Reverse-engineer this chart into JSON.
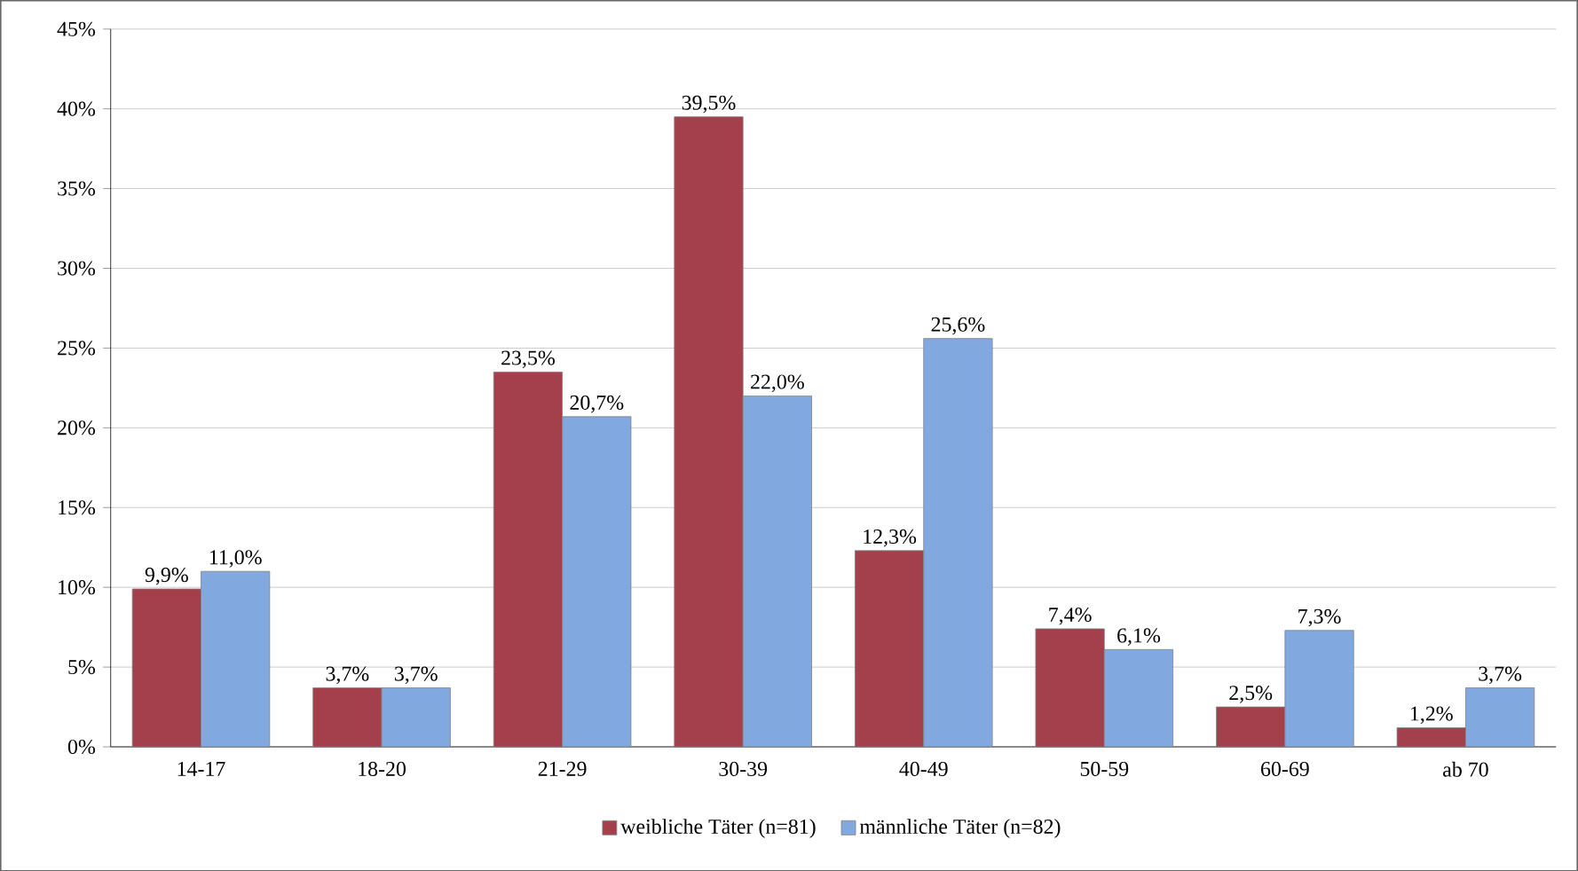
{
  "chart_data": {
    "type": "bar",
    "categories": [
      "14-17",
      "18-20",
      "21-29",
      "30-39",
      "40-49",
      "50-59",
      "60-69",
      "ab 70"
    ],
    "series": [
      {
        "name": "weibliche Täter (n=81)",
        "color": "#a3404c",
        "values": [
          9.9,
          3.7,
          23.5,
          39.5,
          12.3,
          7.4,
          2.5,
          1.2
        ],
        "value_labels": [
          "9,9%",
          "3,7%",
          "23,5%",
          "39,5%",
          "12,3%",
          "7,4%",
          "2,5%",
          "1,2%"
        ]
      },
      {
        "name": "männliche Täter (n=82)",
        "color": "#82a8e0",
        "values": [
          11.0,
          3.7,
          20.7,
          22.0,
          25.6,
          6.1,
          7.3,
          3.7
        ],
        "value_labels": [
          "11,0%",
          "3,7%",
          "20,7%",
          "22,0%",
          "25,6%",
          "6,1%",
          "7,3%",
          "3,7%"
        ]
      }
    ],
    "ylim": [
      0,
      45
    ],
    "yticks": [
      {
        "value": 0,
        "label": "0%"
      },
      {
        "value": 5,
        "label": "5%"
      },
      {
        "value": 10,
        "label": "10%"
      },
      {
        "value": 15,
        "label": "15%"
      },
      {
        "value": 20,
        "label": "20%"
      },
      {
        "value": 25,
        "label": "25%"
      },
      {
        "value": 30,
        "label": "30%"
      },
      {
        "value": 35,
        "label": "35%"
      },
      {
        "value": 40,
        "label": "40%"
      },
      {
        "value": 45,
        "label": "45%"
      }
    ],
    "grid": "y",
    "legend": "bottom"
  }
}
